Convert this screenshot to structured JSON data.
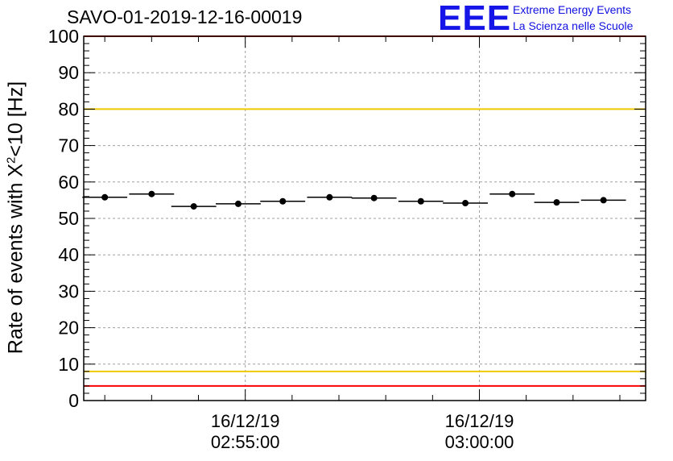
{
  "title": "SAVO-01-2019-12-16-00019",
  "logo": {
    "mark": "EEE",
    "line1": "Extreme Energy Events",
    "line2": "La Scienza nelle Scuole",
    "color": "#1515e8"
  },
  "chart_data": {
    "type": "scatter",
    "title": "SAVO-01-2019-12-16-00019",
    "ylabel_prefix": "Rate of events with X",
    "ylabel_sup": "2",
    "ylabel_suffix": "<10 [Hz]",
    "ylim": [
      0,
      100
    ],
    "yticks": [
      0,
      10,
      20,
      30,
      40,
      50,
      60,
      70,
      80,
      90,
      100
    ],
    "xlim_minutes": [
      -3.45,
      8.55
    ],
    "x_ticks": [
      {
        "minute": 0,
        "date": "16/12/19",
        "time": "02:55:00"
      },
      {
        "minute": 5,
        "date": "16/12/19",
        "time": "03:00:00"
      }
    ],
    "grid": true,
    "series": [
      {
        "name": "rate",
        "bin_width_minutes": 0.96,
        "x_minutes": [
          -3.0,
          -2.0,
          -1.1,
          -0.15,
          0.8,
          1.8,
          2.75,
          3.75,
          4.7,
          5.7,
          6.65,
          7.65
        ],
        "values": [
          55.8,
          56.7,
          53.3,
          54.0,
          54.7,
          55.8,
          55.6,
          54.7,
          54.2,
          56.7,
          54.4,
          55.0
        ]
      }
    ],
    "reference_lines": [
      {
        "value": 100,
        "color": "#ff0000"
      },
      {
        "value": 80,
        "color": "#f0c800"
      },
      {
        "value": 8,
        "color": "#f0c800"
      },
      {
        "value": 4,
        "color": "#ff0000"
      }
    ]
  }
}
